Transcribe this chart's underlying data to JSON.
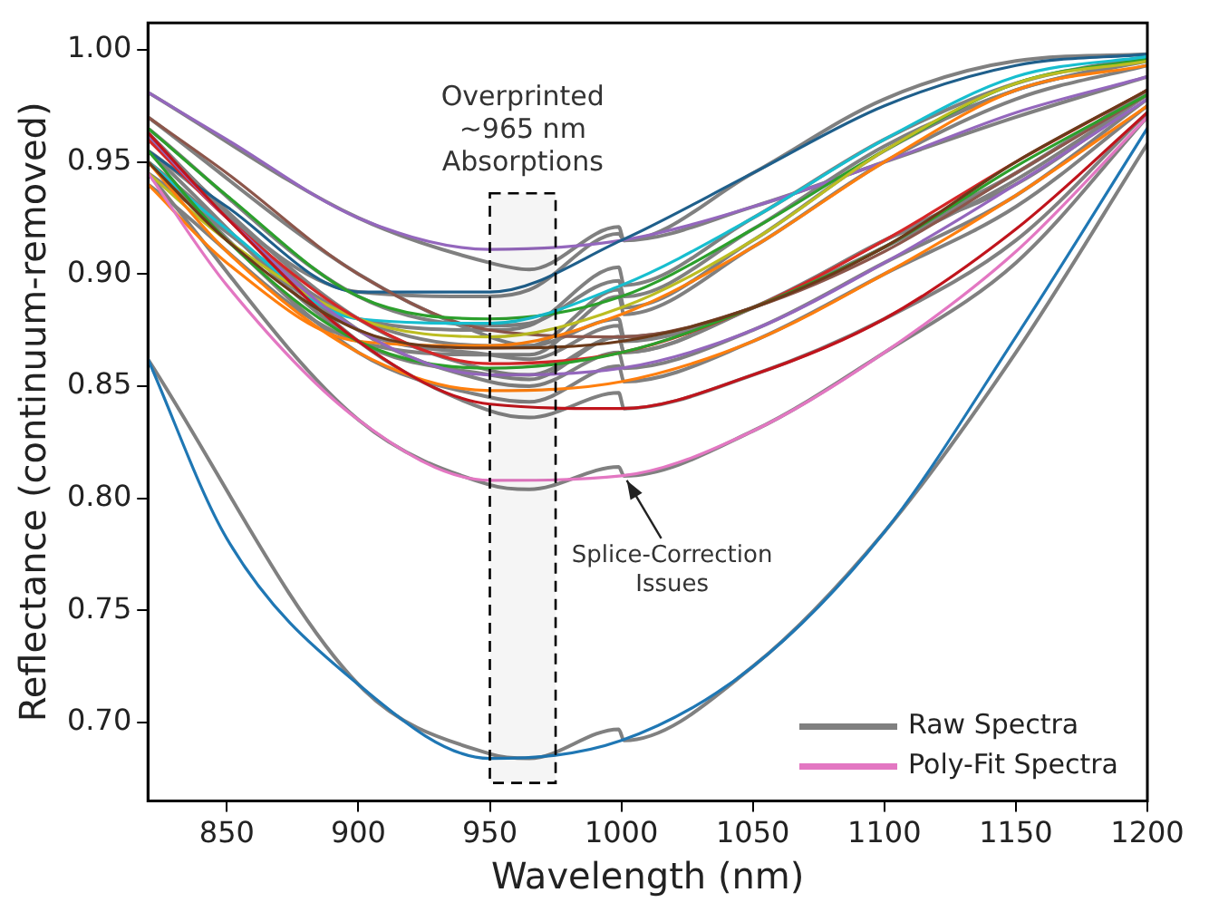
{
  "chart_data": {
    "type": "line",
    "xlabel": "Wavelength (nm)",
    "ylabel": "Reflectance (continuum-removed)",
    "xlim": [
      820,
      1200
    ],
    "xticks": [
      850,
      900,
      950,
      1000,
      1050,
      1100,
      1150,
      1200
    ],
    "ylim": [
      0.665,
      1.012
    ],
    "yticks": [
      {
        "value": 0.7,
        "label": "0.70"
      },
      {
        "value": 0.75,
        "label": "0.75"
      },
      {
        "value": 0.8,
        "label": "0.80"
      },
      {
        "value": 0.85,
        "label": "0.85"
      },
      {
        "value": 0.9,
        "label": "0.90"
      },
      {
        "value": 0.95,
        "label": "0.95"
      },
      {
        "value": 1.0,
        "label": "1.00"
      }
    ],
    "grid": false,
    "legend": "bottom right",
    "marker": "none",
    "line_style": "solid",
    "x": [
      820,
      850,
      900,
      950,
      1000,
      1050,
      1100,
      1150,
      1200
    ],
    "bands": [
      {
        "axis": "x",
        "from": 950,
        "to": 975,
        "label": "Overprinted ~965 nm Absorptions",
        "color": "#000000"
      }
    ],
    "annotations": [
      {
        "text": "Splice-Correction Issues",
        "x": 1000,
        "y": 0.812
      }
    ],
    "series": [
      {
        "name": "Raw Spectra",
        "color": "#808080",
        "x": [
          820,
          900,
          950,
          965,
          999,
          1001,
          1050,
          1100,
          1150,
          1200
        ],
        "values": [
          0.981,
          0.925,
          0.905,
          0.902,
          0.921,
          0.915,
          0.93,
          0.95,
          0.97,
          0.988
        ]
      },
      {
        "color": "#808080",
        "x": [
          820,
          900,
          950,
          965,
          999,
          1001,
          1050,
          1100,
          1150,
          1200
        ],
        "values": [
          0.955,
          0.892,
          0.89,
          0.893,
          0.918,
          0.915,
          0.945,
          0.978,
          0.995,
          0.998
        ]
      },
      {
        "color": "#808080",
        "x": [
          820,
          900,
          950,
          965,
          999,
          1001,
          1050,
          1100,
          1150,
          1200
        ],
        "values": [
          0.97,
          0.9,
          0.872,
          0.868,
          0.88,
          0.872,
          0.885,
          0.915,
          0.94,
          0.98
        ]
      },
      {
        "color": "#808080",
        "x": [
          820,
          900,
          950,
          965,
          999,
          1001,
          1050,
          1100,
          1150,
          1200
        ],
        "values": [
          0.965,
          0.89,
          0.877,
          0.878,
          0.897,
          0.89,
          0.92,
          0.957,
          0.982,
          0.996
        ]
      },
      {
        "color": "#808080",
        "x": [
          820,
          900,
          950,
          965,
          999,
          1001,
          1050,
          1100,
          1150,
          1200
        ],
        "values": [
          0.95,
          0.88,
          0.875,
          0.877,
          0.903,
          0.895,
          0.925,
          0.96,
          0.985,
          0.997
        ]
      },
      {
        "color": "#808080",
        "x": [
          820,
          900,
          950,
          965,
          999,
          1001,
          1050,
          1100,
          1150,
          1200
        ],
        "values": [
          0.945,
          0.88,
          0.868,
          0.868,
          0.893,
          0.885,
          0.915,
          0.955,
          0.982,
          0.995
        ]
      },
      {
        "color": "#808080",
        "x": [
          820,
          900,
          950,
          965,
          999,
          1001,
          1050,
          1100,
          1150,
          1200
        ],
        "values": [
          0.94,
          0.87,
          0.864,
          0.864,
          0.89,
          0.882,
          0.912,
          0.95,
          0.978,
          0.993
        ]
      },
      {
        "color": "#808080",
        "x": [
          820,
          900,
          950,
          965,
          999,
          1001,
          1050,
          1100,
          1150,
          1200
        ],
        "values": [
          0.96,
          0.88,
          0.857,
          0.855,
          0.872,
          0.865,
          0.885,
          0.915,
          0.945,
          0.982
        ]
      },
      {
        "color": "#808080",
        "x": [
          820,
          900,
          950,
          965,
          999,
          1001,
          1050,
          1100,
          1150,
          1200
        ],
        "values": [
          0.955,
          0.87,
          0.855,
          0.853,
          0.872,
          0.865,
          0.885,
          0.912,
          0.942,
          0.98
        ]
      },
      {
        "color": "#808080",
        "x": [
          820,
          900,
          950,
          965,
          999,
          1001,
          1050,
          1100,
          1150,
          1200
        ],
        "values": [
          0.962,
          0.875,
          0.852,
          0.85,
          0.865,
          0.858,
          0.875,
          0.905,
          0.935,
          0.978
        ]
      },
      {
        "color": "#808080",
        "x": [
          820,
          900,
          950,
          965,
          999,
          1001,
          1050,
          1100,
          1150,
          1200
        ],
        "values": [
          0.95,
          0.865,
          0.845,
          0.843,
          0.859,
          0.852,
          0.87,
          0.9,
          0.93,
          0.975
        ]
      },
      {
        "color": "#808080",
        "x": [
          820,
          900,
          950,
          965,
          999,
          1001,
          1050,
          1100,
          1150,
          1200
        ],
        "values": [
          0.963,
          0.87,
          0.839,
          0.836,
          0.847,
          0.84,
          0.855,
          0.88,
          0.915,
          0.972
        ]
      },
      {
        "color": "#808080",
        "x": [
          820,
          900,
          950,
          965,
          999,
          1001,
          1050,
          1100,
          1150,
          1200
        ],
        "values": [
          0.945,
          0.835,
          0.806,
          0.804,
          0.814,
          0.81,
          0.83,
          0.865,
          0.905,
          0.97
        ]
      },
      {
        "color": "#808080",
        "x": [
          820,
          900,
          950,
          965,
          999,
          1001,
          1050,
          1100,
          1150,
          1200
        ],
        "values": [
          0.862,
          0.717,
          0.686,
          0.684,
          0.697,
          0.692,
          0.725,
          0.785,
          0.865,
          0.958
        ]
      },
      {
        "color": "#808080",
        "x": [
          820,
          900,
          950,
          965,
          999,
          1001,
          1050,
          1100,
          1150,
          1200
        ],
        "values": [
          0.95,
          0.875,
          0.864,
          0.862,
          0.877,
          0.87,
          0.885,
          0.912,
          0.945,
          0.982
        ]
      },
      {
        "color": "#9467bd",
        "values": [
          0.981,
          0.96,
          0.925,
          0.911,
          0.915,
          0.93,
          0.95,
          0.972,
          0.988
        ]
      },
      {
        "color": "#1f5f8b",
        "values": [
          0.955,
          0.93,
          0.892,
          0.892,
          0.915,
          0.945,
          0.975,
          0.993,
          0.998
        ]
      },
      {
        "color": "#8c564b",
        "values": [
          0.97,
          0.945,
          0.9,
          0.875,
          0.872,
          0.885,
          0.91,
          0.945,
          0.98
        ]
      },
      {
        "color": "#2ca02c",
        "values": [
          0.965,
          0.935,
          0.89,
          0.88,
          0.89,
          0.92,
          0.955,
          0.985,
          0.996
        ]
      },
      {
        "color": "#17becf",
        "values": [
          0.95,
          0.92,
          0.88,
          0.878,
          0.895,
          0.925,
          0.96,
          0.988,
          0.997
        ]
      },
      {
        "color": "#bcbd22",
        "values": [
          0.945,
          0.915,
          0.88,
          0.872,
          0.885,
          0.915,
          0.955,
          0.985,
          0.995
        ]
      },
      {
        "color": "#ff7f0e",
        "values": [
          0.94,
          0.905,
          0.87,
          0.868,
          0.882,
          0.912,
          0.95,
          0.982,
          0.993
        ]
      },
      {
        "color": "#d62728",
        "values": [
          0.96,
          0.925,
          0.88,
          0.86,
          0.865,
          0.885,
          0.915,
          0.95,
          0.982
        ]
      },
      {
        "color": "#2ca02c",
        "values": [
          0.955,
          0.915,
          0.87,
          0.858,
          0.865,
          0.885,
          0.912,
          0.948,
          0.98
        ]
      },
      {
        "color": "#9467bd",
        "values": [
          0.962,
          0.925,
          0.875,
          0.855,
          0.858,
          0.875,
          0.905,
          0.94,
          0.978
        ]
      },
      {
        "color": "#ff7f0e",
        "values": [
          0.95,
          0.91,
          0.865,
          0.848,
          0.852,
          0.87,
          0.9,
          0.935,
          0.975
        ]
      },
      {
        "color": "#c0141c",
        "values": [
          0.963,
          0.925,
          0.87,
          0.842,
          0.84,
          0.855,
          0.88,
          0.92,
          0.972
        ]
      },
      {
        "name": "Poly-Fit Spectra",
        "color": "#e377c2",
        "values": [
          0.945,
          0.895,
          0.835,
          0.808,
          0.81,
          0.83,
          0.865,
          0.91,
          0.97
        ]
      },
      {
        "color": "#1f77b4",
        "values": [
          0.862,
          0.782,
          0.717,
          0.684,
          0.692,
          0.725,
          0.785,
          0.872,
          0.965
        ]
      },
      {
        "color": "#6b3a1a",
        "values": [
          0.95,
          0.915,
          0.875,
          0.867,
          0.87,
          0.885,
          0.912,
          0.95,
          0.982
        ]
      }
    ]
  }
}
